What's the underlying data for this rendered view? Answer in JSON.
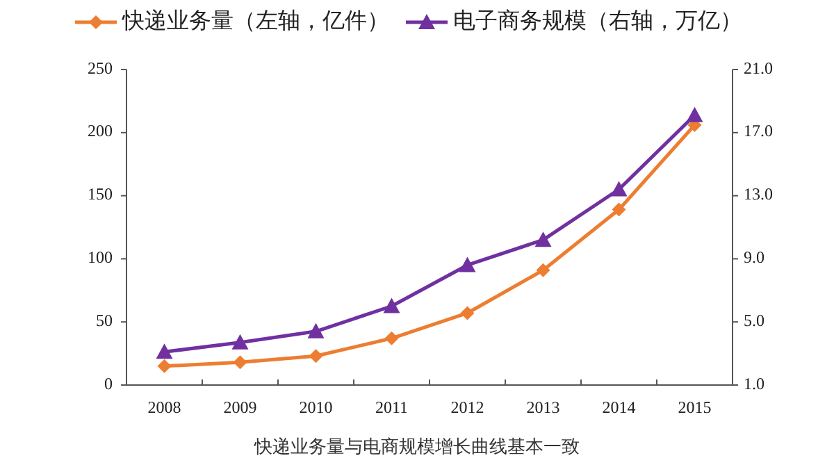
{
  "chart_data": {
    "type": "line",
    "categories": [
      "2008",
      "2009",
      "2010",
      "2011",
      "2012",
      "2013",
      "2014",
      "2015"
    ],
    "series": [
      {
        "name": "快递业务量（左轴，亿件）",
        "color": "#ed7d31",
        "marker": "diamond",
        "axis": "y",
        "values": [
          15,
          18,
          23,
          37,
          57,
          91,
          139,
          206
        ]
      },
      {
        "name": "电子商务规模（右轴，万亿）",
        "color": "#7030a0",
        "marker": "triangle",
        "axis": "y2",
        "values": [
          3.1,
          3.7,
          4.4,
          6.0,
          8.6,
          10.2,
          13.4,
          18.1
        ]
      }
    ],
    "ylim": [
      0,
      250
    ],
    "yticks": [
      0,
      50,
      100,
      150,
      200,
      250
    ],
    "y2lim": [
      1,
      21
    ],
    "y2ticks": [
      {
        "value": 1,
        "label": "1.0"
      },
      {
        "value": 5,
        "label": "5.0"
      },
      {
        "value": 9,
        "label": "9.0"
      },
      {
        "value": 13,
        "label": "13.0"
      },
      {
        "value": 17,
        "label": "17.0"
      },
      {
        "value": 21,
        "label": "21.0"
      }
    ],
    "legend": "top",
    "annotations": [
      "快递业务量与电商规模增长曲线基本一致"
    ]
  }
}
